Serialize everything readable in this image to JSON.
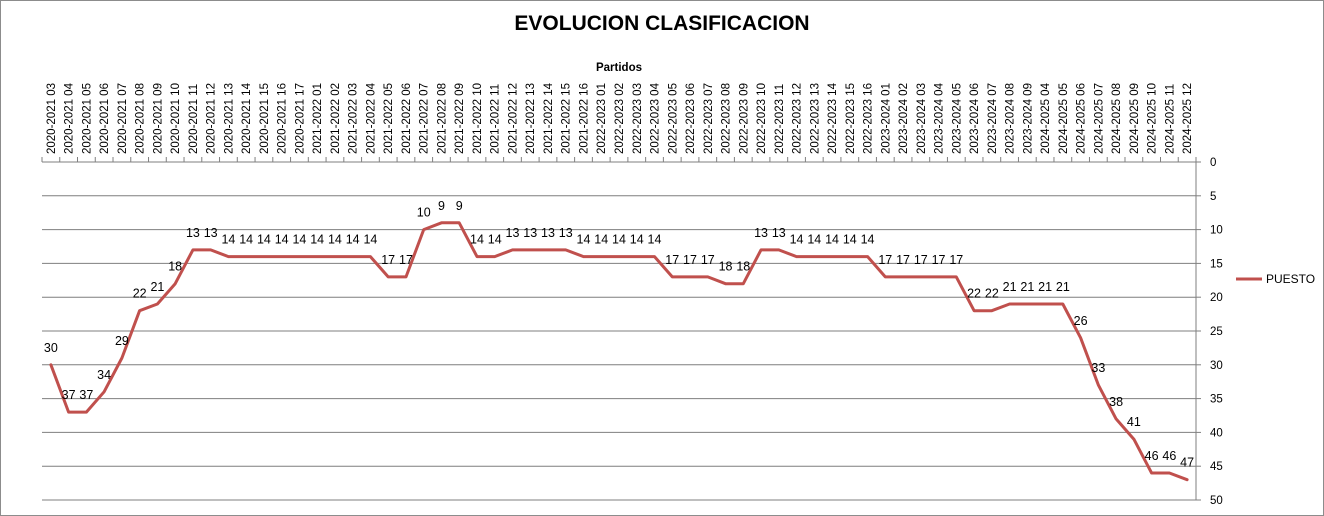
{
  "chart_data": {
    "type": "line",
    "title": "EVOLUCION CLASIFICACION",
    "xlabel": "Partidos",
    "ylabel": "",
    "x_axis_position": "top",
    "y_axis_position": "right",
    "y_inverted": true,
    "ylim": [
      0,
      50
    ],
    "y_ticks": [
      0,
      5,
      10,
      15,
      20,
      25,
      30,
      35,
      40,
      45,
      50
    ],
    "grid": "horizontal",
    "legend_position": "right",
    "categories": [
      "2020-2021 03",
      "2020-2021 04",
      "2020-2021 05",
      "2020-2021 06",
      "2020-2021 07",
      "2020-2021 08",
      "2020-2021 09",
      "2020-2021 10",
      "2020-2021 11",
      "2020-2021 12",
      "2020-2021 13",
      "2020-2021 14",
      "2020-2021 15",
      "2020-2021 16",
      "2020-2021 17",
      "2021-2022 01",
      "2021-2022 02",
      "2021-2022 03",
      "2021-2022 04",
      "2021-2022 05",
      "2021-2022 06",
      "2021-2022 07",
      "2021-2022 08",
      "2021-2022 09",
      "2021-2022 10",
      "2021-2022 11",
      "2021-2022 12",
      "2021-2022 13",
      "2021-2022 14",
      "2021-2022 15",
      "2021-2022 16",
      "2022-2023 01",
      "2022-2023 02",
      "2022-2023 03",
      "2022-2023 04",
      "2022-2023 05",
      "2022-2023 06",
      "2022-2023 07",
      "2022-2023 08",
      "2022-2023 09",
      "2022-2023 10",
      "2022-2023 11",
      "2022-2023 12",
      "2022-2023 13",
      "2022-2023 14",
      "2022-2023 15",
      "2022-2023 16",
      "2023-2024 01",
      "2023-2024 02",
      "2023-2024 03",
      "2023-2024 04",
      "2023-2024 05",
      "2023-2024 06",
      "2023-2024 07",
      "2023-2024 08",
      "2023-2024 09",
      "2024-2025 04",
      "2024-2025 05",
      "2024-2025 06",
      "2024-2025 07",
      "2024-2025 08",
      "2024-2025 09",
      "2024-2025 10",
      "2024-2025 11",
      "2024-2025 12"
    ],
    "series": [
      {
        "name": "PUESTO",
        "color": "#c0504d",
        "values": [
          30,
          37,
          37,
          34,
          29,
          22,
          21,
          18,
          13,
          13,
          14,
          14,
          14,
          14,
          14,
          14,
          14,
          14,
          14,
          17,
          17,
          10,
          9,
          9,
          14,
          14,
          13,
          13,
          13,
          13,
          14,
          14,
          14,
          14,
          14,
          17,
          17,
          17,
          18,
          18,
          13,
          13,
          14,
          14,
          14,
          14,
          14,
          17,
          17,
          17,
          17,
          17,
          22,
          22,
          21,
          21,
          21,
          21,
          26,
          33,
          38,
          41,
          46,
          46,
          47
        ]
      }
    ]
  }
}
